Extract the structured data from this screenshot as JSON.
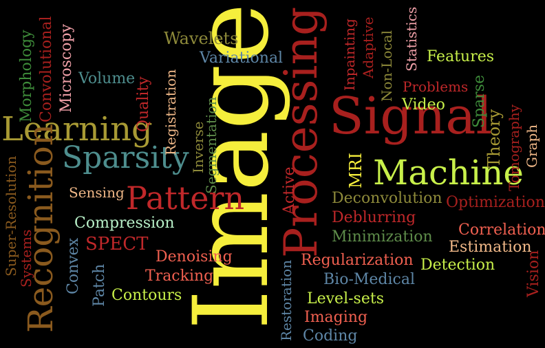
{
  "words": {
    "image": "Image",
    "processing": "Processing",
    "signal": "Signal",
    "machine": "Machine",
    "learning": "Learning",
    "sparsity": "Sparsity",
    "pattern": "Pattern",
    "recognition": "Recognition",
    "wavelets": "Wavelets",
    "variational": "Variational",
    "morphology": "Morphology",
    "convolutional": "Convolutional",
    "microscopy": "Microscopy",
    "volume": "Volume",
    "quality": "Quality",
    "registration": "Registration",
    "segmentation": "Segmentation",
    "inverse": "Inverse",
    "inpainting": "Inpainting",
    "adaptive": "Adaptive",
    "non_local": "Non-Local",
    "statistics": "Statistics",
    "features": "Features",
    "problems": "Problems",
    "video": "Video",
    "sparse": "Sparse",
    "theory": "Theory",
    "tomography": "Tomography",
    "graph": "Graph",
    "mri": "MRI",
    "active": "Active",
    "deconvolution": "Deconvolution",
    "optimization": "Optimization",
    "deblurring": "Deblurring",
    "minimization": "Minimization",
    "correlation": "Correlation",
    "estimation": "Estimation",
    "detection": "Detection",
    "vision": "Vision",
    "regularization": "Regularization",
    "bio_medical": "Bio-Medical",
    "level_sets": "Level-sets",
    "imaging": "Imaging",
    "coding": "Coding",
    "restoration": "Restoration",
    "sensing": "Sensing",
    "compression": "Compression",
    "convex": "Convex",
    "spect": "SPECT",
    "denoising": "Denoising",
    "tracking": "Tracking",
    "patch": "Patch",
    "contours": "Contours",
    "super_resolution": "Super-Resolution",
    "systems": "Systems"
  },
  "colors": {
    "yellow": "#F5EE3C",
    "crimson": "#A8201E",
    "red": "#C0282A",
    "lime": "#C8F04A",
    "olive": "#A89A34",
    "teal": "#4E8E8E",
    "mint": "#B8F0C8",
    "green": "#3E8C3A",
    "khaki": "#8E8A3A",
    "coral": "#F06050",
    "slate": "#5E86A6",
    "sage": "#5E8C4A",
    "brown": "#8A5A1E",
    "peach": "#F0B888",
    "pink": "#F0A0A8"
  }
}
